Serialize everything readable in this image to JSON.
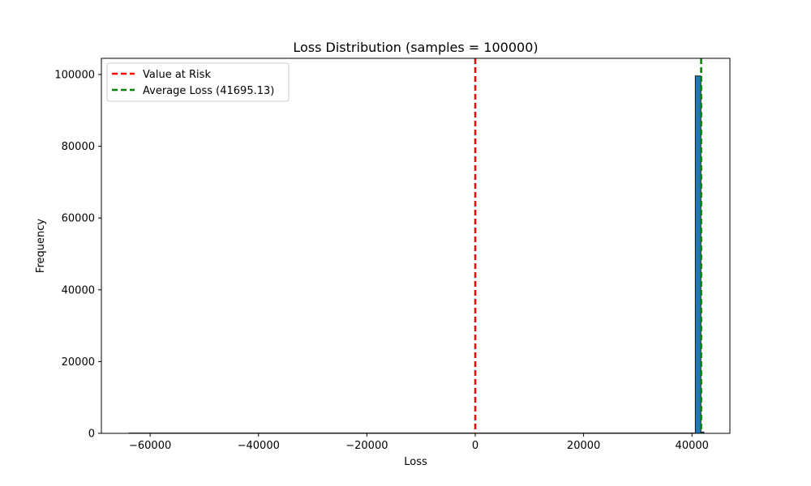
{
  "chart_data": {
    "type": "bar",
    "title": "Loss Distribution (samples = 100000)",
    "xlabel": "Loss",
    "ylabel": "Frequency",
    "xlim": [
      -69000,
      47000
    ],
    "ylim": [
      0,
      104500
    ],
    "xticks": [
      -60000,
      -40000,
      -20000,
      0,
      20000,
      40000
    ],
    "xtick_labels": [
      "−60000",
      "−40000",
      "−20000",
      "0",
      "20000",
      "40000"
    ],
    "yticks": [
      0,
      20000,
      40000,
      60000,
      80000,
      100000
    ],
    "ytick_labels": [
      "0",
      "20000",
      "40000",
      "60000",
      "80000",
      "100000"
    ],
    "bins": [
      {
        "x0": -64000,
        "x1": 40600,
        "count": 0
      },
      {
        "x0": 40600,
        "x1": 41650,
        "count": 99600
      },
      {
        "x0": 41650,
        "x1": 42200,
        "count": 400
      }
    ],
    "lines": [
      {
        "label": "Value at Risk",
        "x": 0,
        "color": "#ff0000",
        "style": "dashed"
      },
      {
        "label": "Average Loss (41695.13)",
        "x": 41695.13,
        "color": "#008000",
        "style": "dashed"
      }
    ],
    "legend_position": "top-left",
    "bar_color": "#1f77b4",
    "grid": false
  }
}
